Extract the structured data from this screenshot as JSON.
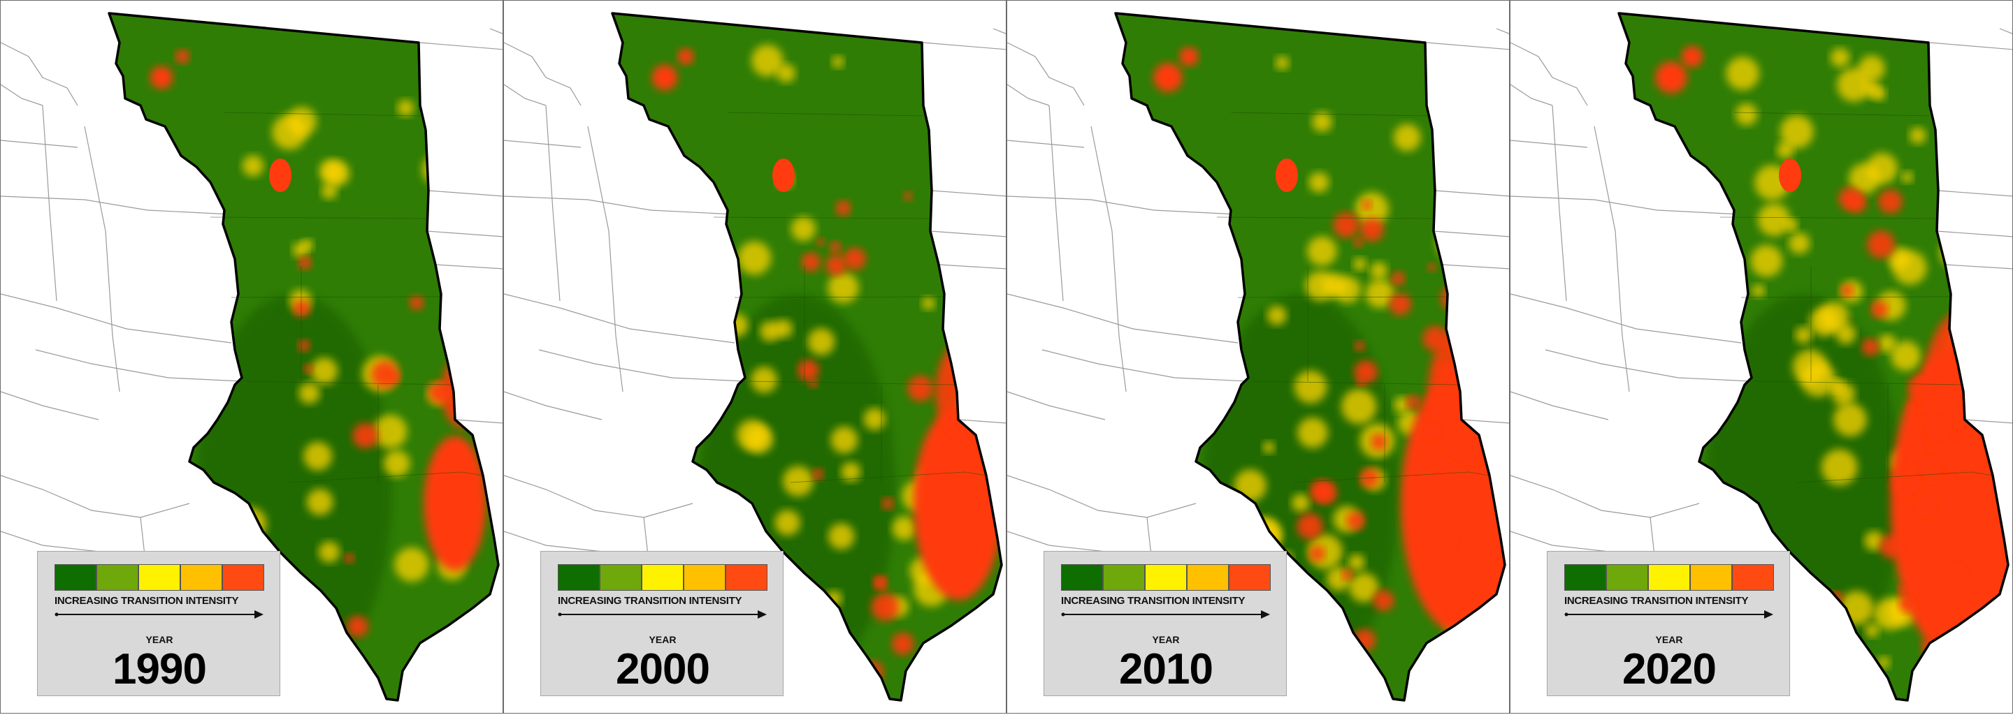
{
  "legend": {
    "label": "INCREASING TRANSITION INTENSITY",
    "year_caption": "YEAR",
    "scale_colors": [
      "#0f6e00",
      "#6fa80a",
      "#fff200",
      "#ffc000",
      "#ff4a12"
    ]
  },
  "panels": [
    {
      "year": "1990",
      "intensity": 0.18
    },
    {
      "year": "2000",
      "intensity": 0.35
    },
    {
      "year": "2010",
      "intensity": 0.55
    },
    {
      "year": "2020",
      "intensity": 0.72
    }
  ],
  "colors": {
    "region_base": "#2f7d05",
    "region_dark": "#1f6300",
    "high": "#ff3b0f",
    "mid": "#ffd400",
    "state_lines": "#9a9a9a",
    "outline": "#000000"
  }
}
